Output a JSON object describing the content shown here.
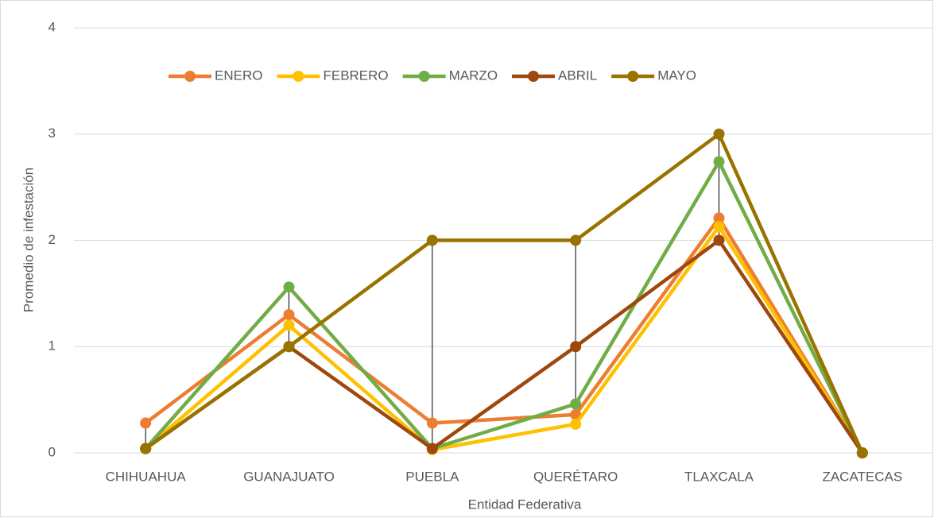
{
  "chart_data": {
    "type": "line",
    "x_label": "Entidad Federativa",
    "y_label": "Promedio de infestación",
    "categories": [
      "CHIHUAHUA",
      "GUANAJUATO",
      "PUEBLA",
      "QUERÉTARO",
      "TLAXCALA",
      "ZACATECAS"
    ],
    "series": [
      {
        "name": "ENERO",
        "color": "#ed7d31",
        "values": [
          0.28,
          1.3,
          0.28,
          0.36,
          2.21,
          0
        ]
      },
      {
        "name": "FEBRERO",
        "color": "#ffc000",
        "values": [
          0.04,
          1.2,
          0.03,
          0.27,
          2.13,
          0
        ]
      },
      {
        "name": "MARZO",
        "color": "#70ad47",
        "values": [
          0.04,
          1.56,
          0.04,
          0.46,
          2.74,
          0
        ]
      },
      {
        "name": "ABRIL",
        "color": "#9e480e",
        "values": [
          0.04,
          1,
          0.04,
          1,
          2,
          0
        ]
      },
      {
        "name": "MAYO",
        "color": "#997300",
        "values": [
          0.04,
          1,
          2,
          2,
          3,
          0
        ]
      }
    ],
    "ylim": [
      0,
      4
    ],
    "yticks": [
      0,
      1,
      2,
      3,
      4
    ],
    "grid": true,
    "high_low_lines": true,
    "legend": "top"
  }
}
